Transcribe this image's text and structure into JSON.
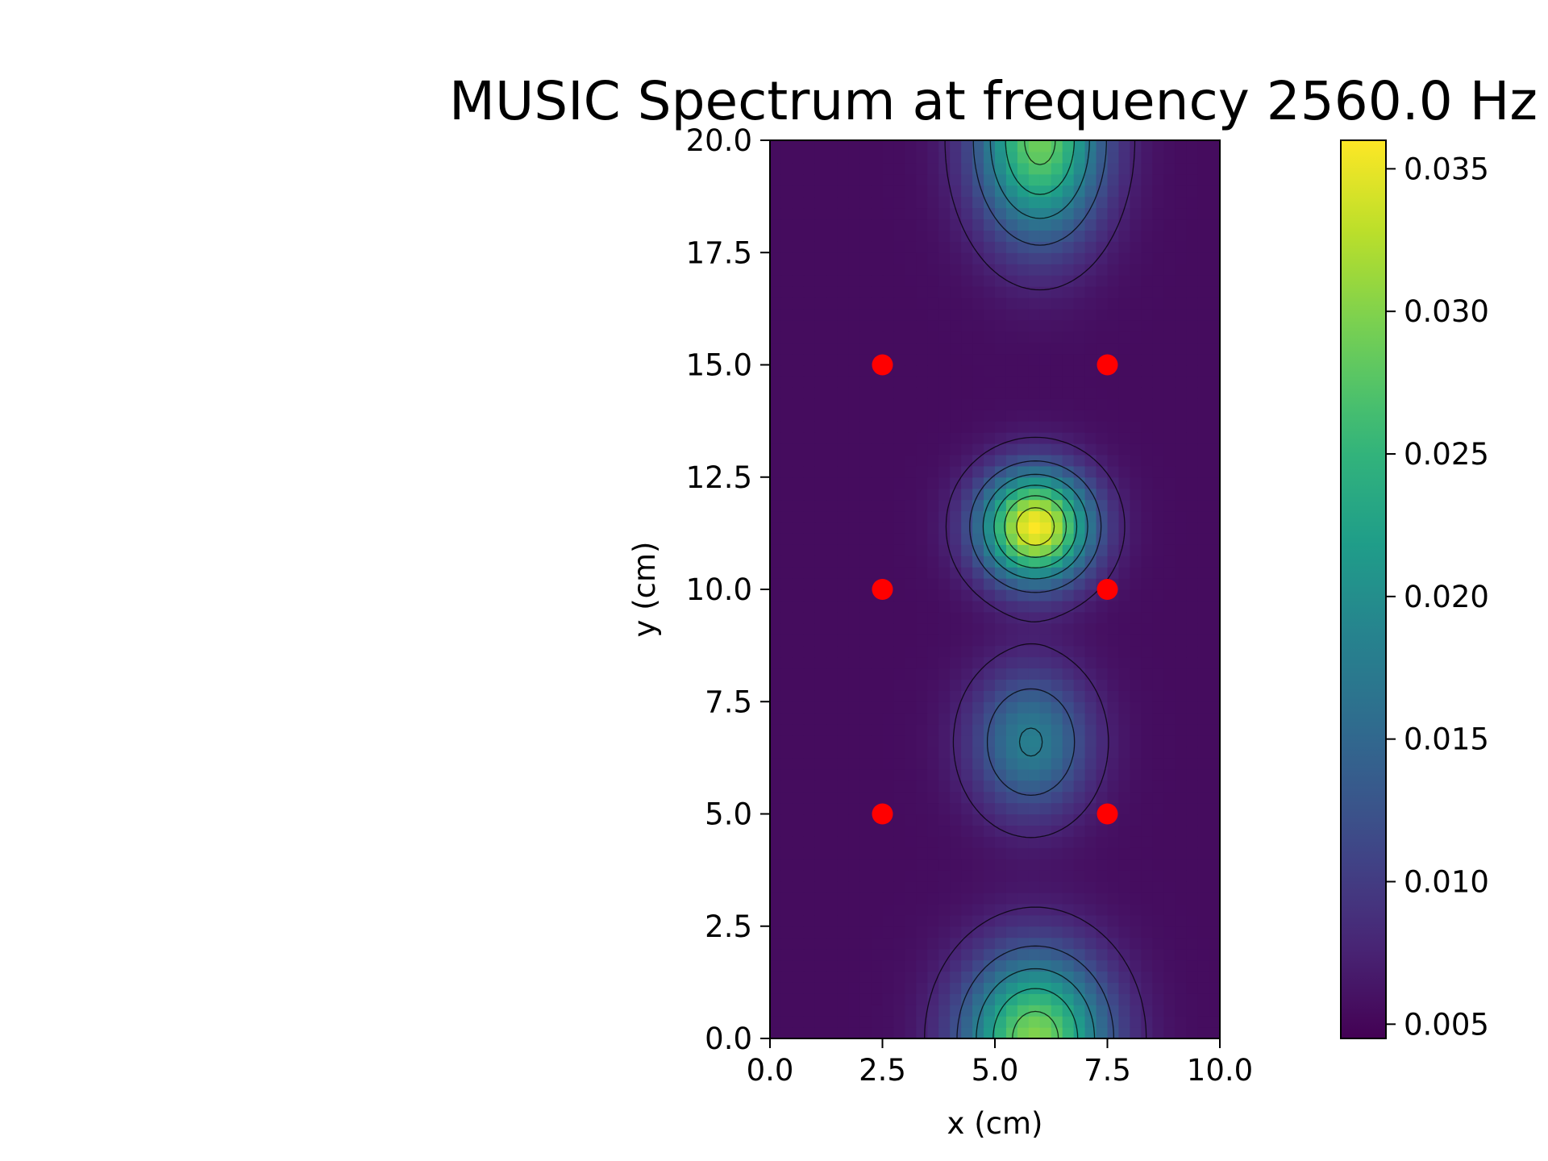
{
  "chart_data": {
    "type": "heatmap",
    "title": "MUSIC Spectrum at frequency 2560.0 Hz",
    "xlabel": "x (cm)",
    "ylabel": "y (cm)",
    "xlim": [
      0,
      10
    ],
    "ylim": [
      0,
      20
    ],
    "x_ticks": [
      "0.0",
      "2.5",
      "5.0",
      "7.5",
      "10.0"
    ],
    "y_ticks": [
      "0.0",
      "2.5",
      "5.0",
      "7.5",
      "10.0",
      "12.5",
      "15.0",
      "17.5",
      "20.0"
    ],
    "colormap": "viridis",
    "colorbar": {
      "min": 0.0045,
      "max": 0.036,
      "ticks": [
        "0.005",
        "0.010",
        "0.015",
        "0.020",
        "0.025",
        "0.030",
        "0.035"
      ]
    },
    "grid": false,
    "contours": true,
    "peaks": [
      {
        "x": 5.9,
        "y": 11.4,
        "value": 0.036
      },
      {
        "x": 5.8,
        "y": 6.6,
        "value": 0.018
      },
      {
        "x": 6.0,
        "y": 20.0,
        "value": 0.029
      },
      {
        "x": 5.9,
        "y": 0.0,
        "value": 0.03
      }
    ],
    "background_value": 0.0055,
    "microphones": {
      "color": "#ff0000",
      "points": [
        {
          "x": 2.5,
          "y": 15.0
        },
        {
          "x": 7.5,
          "y": 15.0
        },
        {
          "x": 2.5,
          "y": 10.0
        },
        {
          "x": 7.5,
          "y": 10.0
        },
        {
          "x": 2.5,
          "y": 5.0
        },
        {
          "x": 7.5,
          "y": 5.0
        }
      ]
    }
  }
}
